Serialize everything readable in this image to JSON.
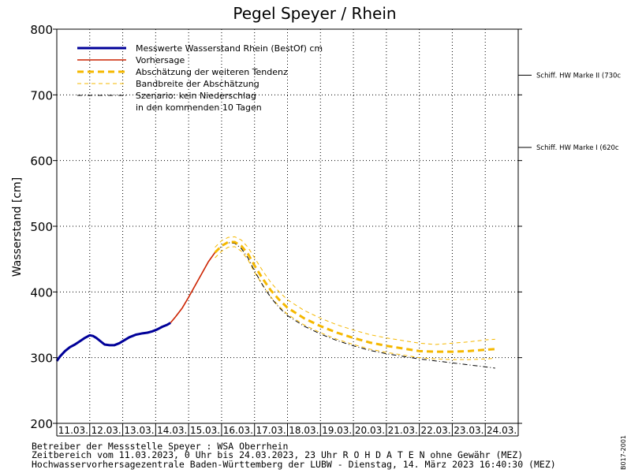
{
  "chart_data": {
    "type": "line",
    "title": "Pegel Speyer / Rhein",
    "ylabel": "Wasserstand [cm]",
    "xlabel": "",
    "ylim": [
      200,
      800
    ],
    "yticks": [
      200,
      300,
      400,
      500,
      600,
      700,
      800
    ],
    "categories": [
      "11.03.",
      "12.03.",
      "13.03.",
      "14.03.",
      "15.03.",
      "16.03.",
      "17.03.",
      "18.03.",
      "19.03.",
      "20.03.",
      "21.03.",
      "22.03.",
      "23.03.",
      "24.03."
    ],
    "grid": true,
    "legend_position": "top-left",
    "series": [
      {
        "name": "Messwerte Wasserstand Rhein (BestOf)   cm",
        "color": "#000099",
        "style": "solid-thick",
        "x": [
          0.0,
          0.1,
          0.25,
          0.4,
          0.55,
          0.7,
          0.85,
          1.0,
          1.1,
          1.2,
          1.3,
          1.45,
          1.6,
          1.75,
          1.9,
          2.0,
          2.1,
          2.2,
          2.3,
          2.4,
          2.5,
          2.6,
          2.75,
          2.9,
          3.05,
          3.2,
          3.35,
          3.45
        ],
        "values": [
          295,
          302,
          310,
          316,
          320,
          325,
          330,
          334,
          333,
          330,
          326,
          320,
          319,
          319,
          322,
          325,
          328,
          331,
          333,
          335,
          336,
          337,
          338,
          340,
          343,
          347,
          350,
          353
        ]
      },
      {
        "name": "Vorhersage",
        "color": "#cc2200",
        "style": "solid",
        "x": [
          3.45,
          3.6,
          3.8,
          4.0,
          4.2,
          4.4,
          4.6,
          4.8
        ],
        "values": [
          353,
          362,
          375,
          392,
          410,
          428,
          446,
          460
        ]
      },
      {
        "name": "Abschätzung der weiteren Tendenz",
        "color": "#f5b800",
        "style": "dashed-thick",
        "x": [
          4.8,
          5.0,
          5.2,
          5.4,
          5.6,
          5.8,
          6.0,
          6.25,
          6.5,
          6.75,
          7.0,
          7.5,
          8.0,
          8.5,
          9.0,
          9.5,
          10.0,
          10.5,
          11.0,
          11.5,
          12.0,
          12.5,
          13.0,
          13.3
        ],
        "values": [
          460,
          470,
          476,
          476,
          470,
          458,
          440,
          420,
          402,
          388,
          376,
          360,
          348,
          338,
          330,
          323,
          318,
          314,
          310,
          309,
          309,
          310,
          312,
          313
        ]
      },
      {
        "name": "Bandbreite der Abschätzung",
        "color": "#f5b800",
        "style": "dashed-thin",
        "band_upper": {
          "x": [
            4.8,
            5.0,
            5.2,
            5.4,
            5.6,
            5.8,
            6.0,
            6.25,
            6.5,
            6.75,
            7.0,
            7.5,
            8.0,
            8.5,
            9.0,
            9.5,
            10.0,
            10.5,
            11.0,
            11.5,
            12.0,
            12.5,
            13.0,
            13.3
          ],
          "values": [
            468,
            478,
            483,
            484,
            479,
            468,
            452,
            432,
            414,
            400,
            388,
            372,
            360,
            350,
            342,
            335,
            330,
            326,
            322,
            320,
            322,
            324,
            327,
            328
          ]
        },
        "band_lower": {
          "x": [
            4.8,
            5.0,
            5.2,
            5.4,
            5.6,
            5.8,
            6.0,
            6.25,
            6.5,
            6.75,
            7.0,
            7.5,
            8.0,
            8.5,
            9.0,
            9.5,
            10.0,
            10.5,
            11.0,
            11.5,
            12.0,
            12.5,
            13.0,
            13.3
          ],
          "values": [
            452,
            462,
            468,
            469,
            462,
            449,
            430,
            410,
            392,
            378,
            366,
            350,
            338,
            328,
            320,
            313,
            308,
            304,
            300,
            298,
            297,
            297,
            298,
            299
          ]
        }
      },
      {
        "name": "Szenario: kein Niederschlag",
        "name_line2": "in den kommenden 10 Tagen",
        "color": "#000000",
        "style": "dash-dot",
        "x": [
          4.8,
          5.0,
          5.2,
          5.4,
          5.6,
          5.8,
          6.0,
          6.25,
          6.5,
          6.75,
          7.0,
          7.5,
          8.0,
          8.5,
          9.0,
          9.5,
          10.0,
          10.5,
          11.0,
          11.5,
          12.0,
          12.5,
          13.0,
          13.3
        ],
        "values": [
          460,
          470,
          475,
          474,
          466,
          452,
          432,
          410,
          391,
          376,
          364,
          348,
          336,
          326,
          318,
          311,
          306,
          302,
          298,
          295,
          292,
          289,
          286,
          284
        ]
      }
    ],
    "reference_marks": [
      {
        "label": "Schiff. HW Marke II (730c",
        "value": 730
      },
      {
        "label": "Schiff. HW Marke I (620c",
        "value": 620
      }
    ]
  },
  "footer": {
    "line1": "Betreiber der Messstelle Speyer : WSA Oberrhein",
    "line2": "Zeitbereich vom 11.03.2023, 0 Uhr bis 24.03.2023, 23 Uhr    R O H D A T E N ohne Gewähr (MEZ)",
    "line3": "Hochwasservorhersagezentrale Baden-Württemberg der LUBW - Dienstag, 14. März 2023 16:40:30 (MEZ)"
  },
  "side_code": "B017-2001"
}
